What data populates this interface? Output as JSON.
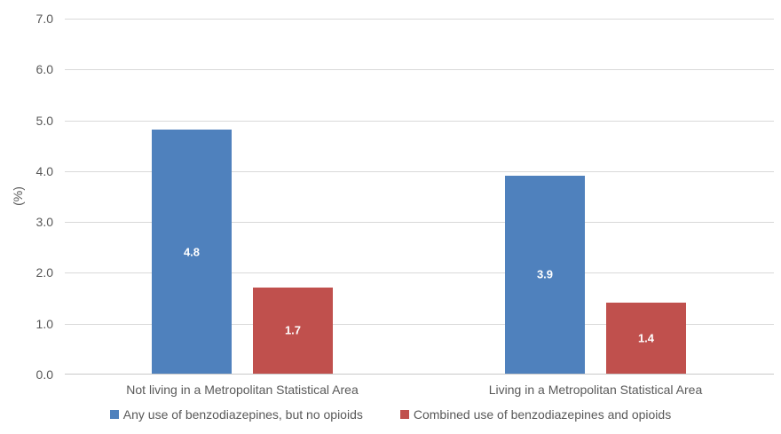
{
  "chart_data": {
    "type": "bar",
    "title": "",
    "xlabel": "",
    "ylabel": "(%)",
    "ylim": [
      0,
      7
    ],
    "ytick_step": 1,
    "ytick_decimals": 1,
    "grid": true,
    "legend_position": "bottom",
    "categories": [
      "Not living in a Metropolitan Statistical Area",
      "Living in a Metropolitan Statistical Area"
    ],
    "series": [
      {
        "name": "Any use of benzodiazepines, but no opioids",
        "color": "#4F81BD",
        "values": [
          4.8,
          3.9
        ]
      },
      {
        "name": "Combined use of benzodiazepines and opioids",
        "color": "#C0504D",
        "values": [
          1.7,
          1.4
        ]
      }
    ],
    "data_labels": true,
    "data_label_color": "#FFFFFF"
  },
  "colors": {
    "axis_text": "#595959",
    "gridline": "#D9D9D9",
    "axis_line": "#C9C9C9",
    "background": "#FFFFFF"
  }
}
